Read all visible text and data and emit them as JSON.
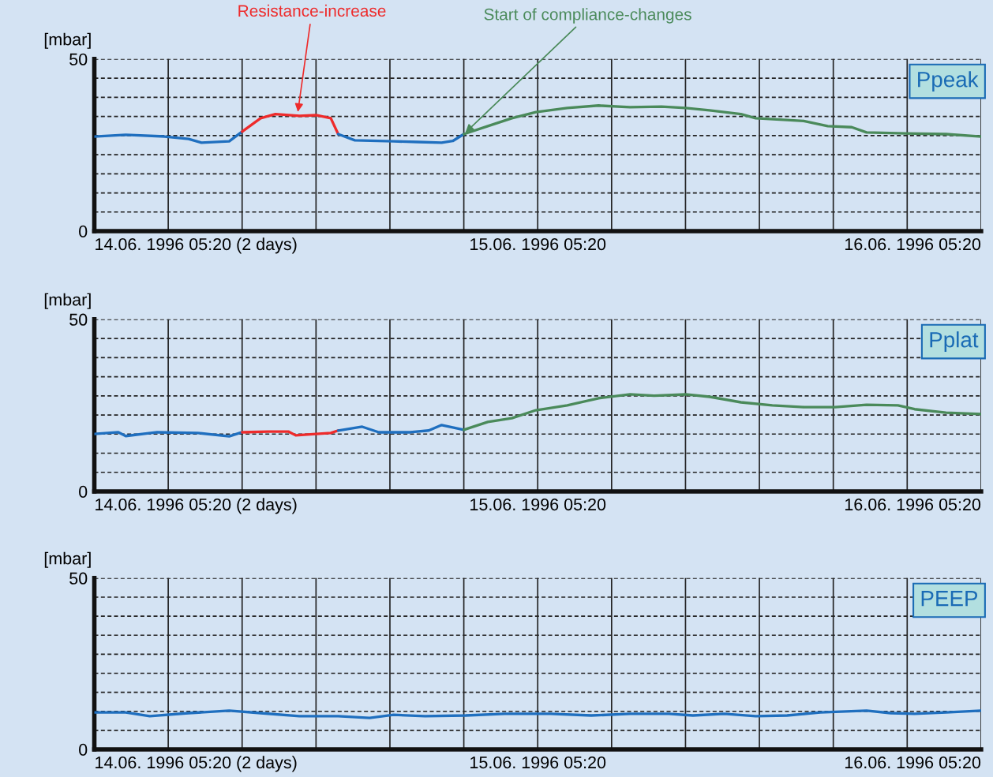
{
  "chart_data": [
    {
      "type": "line",
      "ylabel": "[mbar]",
      "xlim": [
        "1996-06-14T05:20",
        "1996-06-16T05:20"
      ],
      "ylim": [
        0,
        50
      ],
      "grid": true,
      "xticks": [
        {
          "value": "1996-06-14T05:20",
          "label": "14.06. 1996 05:20 (2 days)"
        },
        {
          "value": "1996-06-14T09:20",
          "label": null
        },
        {
          "value": "1996-06-14T13:20",
          "label": null
        },
        {
          "value": "1996-06-14T17:20",
          "label": null
        },
        {
          "value": "1996-06-14T21:20",
          "label": null
        },
        {
          "value": "1996-06-15T01:20",
          "label": null
        },
        {
          "value": "1996-06-15T05:20",
          "label": "15.06. 1996 05:20"
        },
        {
          "value": "1996-06-15T09:20",
          "label": null
        },
        {
          "value": "1996-06-15T13:20",
          "label": null
        },
        {
          "value": "1996-06-15T17:20",
          "label": null
        },
        {
          "value": "1996-06-15T21:20",
          "label": null
        },
        {
          "value": "1996-06-16T01:20",
          "label": null
        },
        {
          "value": "1996-06-16T05:20",
          "label": "16.06. 1996 05:20"
        }
      ],
      "yticks": [
        0,
        {
          "value": 5.56,
          "label": null
        },
        {
          "value": 11.11,
          "label": null
        },
        {
          "value": 16.67,
          "label": null
        },
        {
          "value": 22.22,
          "label": null
        },
        {
          "value": 27.78,
          "label": null
        },
        {
          "value": 33.33,
          "label": null
        },
        {
          "value": 38.89,
          "label": null
        },
        {
          "value": 44.44,
          "label": null
        },
        50
      ],
      "annotations": [
        "Ppeak",
        {
          "text": "Resistance-increase",
          "x": "1996-06-14T16:20",
          "y": 34
        },
        {
          "text": "Start of compliance-changes",
          "x": "1996-06-15T01:20",
          "y": 28.2
        }
      ],
      "series": [
        {
          "color": "#1f6fbf",
          "x": [
            "1996-06-14T05:20",
            "1996-06-14T07:02",
            "1996-06-14T09:08",
            "1996-06-14T10:26",
            "1996-06-14T11:08",
            "1996-06-14T12:38",
            "1996-06-14T13:20"
          ],
          "values": [
            27.5,
            28,
            27.5,
            26.8,
            25.7,
            26.1,
            28.9
          ]
        },
        {
          "color": "#ee2b2b",
          "x": [
            "1996-06-14T13:20",
            "1996-06-14T14:20",
            "1996-06-14T15:08",
            "1996-06-14T16:26",
            "1996-06-14T17:20",
            "1996-06-14T18:08",
            "1996-06-14T18:32"
          ],
          "values": [
            28.9,
            32.8,
            34,
            33.5,
            33.7,
            32.8,
            28.2
          ]
        },
        {
          "color": "#1f6fbf",
          "x": [
            "1996-06-14T18:32",
            "1996-06-14T19:26",
            "1996-06-14T21:32",
            "1996-06-14T22:50",
            "1996-06-15T00:08",
            "1996-06-15T00:44",
            "1996-06-15T01:20"
          ],
          "values": [
            28.2,
            26.4,
            26.1,
            25.9,
            25.7,
            26.2,
            28.2
          ]
        },
        {
          "color": "#4a8a5a",
          "x": [
            "1996-06-15T01:20",
            "1996-06-15T02:38",
            "1996-06-15T03:56",
            "1996-06-15T05:14",
            "1996-06-15T06:56",
            "1996-06-15T08:38",
            "1996-06-15T10:20",
            "1996-06-15T12:02",
            "1996-06-15T13:20",
            "1996-06-15T14:38",
            "1996-06-15T16:20",
            "1996-06-15T17:08",
            "1996-06-15T18:50",
            "1996-06-15T19:44",
            "1996-06-15T21:02",
            "1996-06-15T22:20",
            "1996-06-15T23:08",
            "1996-06-16T01:14",
            "1996-06-16T03:26",
            "1996-06-16T05:20"
          ],
          "values": [
            28.2,
            30.5,
            32.8,
            34.6,
            35.8,
            36.5,
            36,
            36.2,
            35.8,
            35.1,
            34,
            32.8,
            32.3,
            32,
            30.5,
            30.2,
            28.7,
            28.4,
            28.2,
            27.5
          ]
        }
      ]
    },
    {
      "type": "line",
      "ylabel": "[mbar]",
      "xlim": [
        "1996-06-14T05:20",
        "1996-06-16T05:20"
      ],
      "ylim": [
        0,
        50
      ],
      "grid": true,
      "xticks": [
        {
          "value": "1996-06-14T05:20",
          "label": "14.06. 1996 05:20 (2 days)"
        },
        {
          "value": "1996-06-14T09:20",
          "label": null
        },
        {
          "value": "1996-06-14T13:20",
          "label": null
        },
        {
          "value": "1996-06-14T17:20",
          "label": null
        },
        {
          "value": "1996-06-14T21:20",
          "label": null
        },
        {
          "value": "1996-06-15T01:20",
          "label": null
        },
        {
          "value": "1996-06-15T05:20",
          "label": "15.06. 1996 05:20"
        },
        {
          "value": "1996-06-15T09:20",
          "label": null
        },
        {
          "value": "1996-06-15T13:20",
          "label": null
        },
        {
          "value": "1996-06-15T17:20",
          "label": null
        },
        {
          "value": "1996-06-15T21:20",
          "label": null
        },
        {
          "value": "1996-06-16T01:20",
          "label": null
        },
        {
          "value": "1996-06-16T05:20",
          "label": "16.06. 1996 05:20"
        }
      ],
      "yticks": [
        0,
        {
          "value": 5.56,
          "label": null
        },
        {
          "value": 11.11,
          "label": null
        },
        {
          "value": 16.67,
          "label": null
        },
        {
          "value": 22.22,
          "label": null
        },
        {
          "value": 27.78,
          "label": null
        },
        {
          "value": 33.33,
          "label": null
        },
        {
          "value": 38.89,
          "label": null
        },
        {
          "value": 44.44,
          "label": null
        },
        50
      ],
      "annotations": [
        "Pplat"
      ],
      "series": [
        {
          "color": "#1f6fbf",
          "x": [
            "1996-06-14T05:20",
            "1996-06-14T06:38",
            "1996-06-14T07:02",
            "1996-06-14T08:44",
            "1996-06-14T10:56",
            "1996-06-14T12:38",
            "1996-06-14T13:20"
          ],
          "values": [
            16.7,
            17.2,
            16.1,
            17.2,
            17.0,
            16.0,
            17.2
          ]
        },
        {
          "color": "#ee2b2b",
          "x": [
            "1996-06-14T13:20",
            "1996-06-14T14:44",
            "1996-06-14T15:50",
            "1996-06-14T16:14",
            "1996-06-14T17:20",
            "1996-06-14T18:08",
            "1996-06-14T18:32"
          ],
          "values": [
            17.2,
            17.4,
            17.4,
            16.3,
            16.7,
            17.0,
            17.7
          ]
        },
        {
          "color": "#1f6fbf",
          "x": [
            "1996-06-14T18:32",
            "1996-06-14T19:50",
            "1996-06-14T20:44",
            "1996-06-14T22:26",
            "1996-06-14T23:26",
            "1996-06-15T00:08",
            "1996-06-15T01:20"
          ],
          "values": [
            17.7,
            18.8,
            17.2,
            17.2,
            17.7,
            19.3,
            17.9
          ]
        },
        {
          "color": "#4a8a5a",
          "x": [
            "1996-06-15T01:20",
            "1996-06-15T02:38",
            "1996-06-15T03:56",
            "1996-06-15T05:14",
            "1996-06-15T06:56",
            "1996-06-15T08:38",
            "1996-06-15T10:20",
            "1996-06-15T11:38",
            "1996-06-15T13:20",
            "1996-06-15T14:38",
            "1996-06-15T16:20",
            "1996-06-15T18:02",
            "1996-06-15T19:44",
            "1996-06-15T21:26",
            "1996-06-15T23:08",
            "1996-06-16T00:50",
            "1996-06-16T01:44",
            "1996-06-16T03:26",
            "1996-06-16T05:20"
          ],
          "values": [
            17.9,
            20.2,
            21.3,
            23.6,
            25.0,
            27.1,
            28.2,
            27.8,
            28.2,
            27.5,
            25.9,
            25.0,
            24.5,
            24.5,
            25.2,
            25.0,
            23.9,
            22.9,
            22.5
          ]
        }
      ]
    },
    {
      "type": "line",
      "ylabel": "[mbar]",
      "xlim": [
        "1996-06-14T05:20",
        "1996-06-16T05:20"
      ],
      "ylim": [
        0,
        50
      ],
      "grid": true,
      "xticks": [
        {
          "value": "1996-06-14T05:20",
          "label": "14.06. 1996 05:20 (2 days)"
        },
        {
          "value": "1996-06-14T09:20",
          "label": null
        },
        {
          "value": "1996-06-14T13:20",
          "label": null
        },
        {
          "value": "1996-06-14T17:20",
          "label": null
        },
        {
          "value": "1996-06-14T21:20",
          "label": null
        },
        {
          "value": "1996-06-15T01:20",
          "label": null
        },
        {
          "value": "1996-06-15T05:20",
          "label": "15.06. 1996 05:20"
        },
        {
          "value": "1996-06-15T09:20",
          "label": null
        },
        {
          "value": "1996-06-15T13:20",
          "label": null
        },
        {
          "value": "1996-06-15T17:20",
          "label": null
        },
        {
          "value": "1996-06-15T21:20",
          "label": null
        },
        {
          "value": "1996-06-16T01:20",
          "label": null
        },
        {
          "value": "1996-06-16T05:20",
          "label": "16.06. 1996 05:20"
        }
      ],
      "yticks": [
        0,
        {
          "value": 5.56,
          "label": null
        },
        {
          "value": 11.11,
          "label": null
        },
        {
          "value": 16.67,
          "label": null
        },
        {
          "value": 22.22,
          "label": null
        },
        {
          "value": 27.78,
          "label": null
        },
        {
          "value": 33.33,
          "label": null
        },
        {
          "value": 38.89,
          "label": null
        },
        {
          "value": 44.44,
          "label": null
        },
        50
      ],
      "annotations": [
        "PEEP"
      ],
      "series": [
        {
          "color": "#1f6fbf",
          "x": [
            "1996-06-14T05:20",
            "1996-06-14T07:02",
            "1996-06-14T08:20",
            "1996-06-14T10:26",
            "1996-06-14T12:38",
            "1996-06-14T14:20",
            "1996-06-14T16:26",
            "1996-06-14T18:32",
            "1996-06-14T20:14",
            "1996-06-14T21:32",
            "1996-06-14T23:14",
            "1996-06-15T01:26",
            "1996-06-15T03:32",
            "1996-06-15T06:02",
            "1996-06-15T08:14",
            "1996-06-15T10:20",
            "1996-06-15T12:26",
            "1996-06-15T13:44",
            "1996-06-15T15:26",
            "1996-06-15T17:08",
            "1996-06-15T18:50",
            "1996-06-15T20:38",
            "1996-06-15T23:08",
            "1996-06-16T00:26",
            "1996-06-16T01:44",
            "1996-06-16T03:26",
            "1996-06-16T05:20"
          ],
          "values": [
            10.8,
            10.8,
            9.7,
            10.6,
            11.3,
            10.6,
            9.7,
            9.7,
            9.2,
            10.1,
            9.7,
            9.9,
            10.4,
            10.4,
            9.9,
            10.4,
            10.4,
            9.9,
            10.4,
            9.7,
            9.9,
            10.8,
            11.3,
            10.6,
            10.4,
            10.8,
            11.3
          ]
        }
      ]
    }
  ]
}
